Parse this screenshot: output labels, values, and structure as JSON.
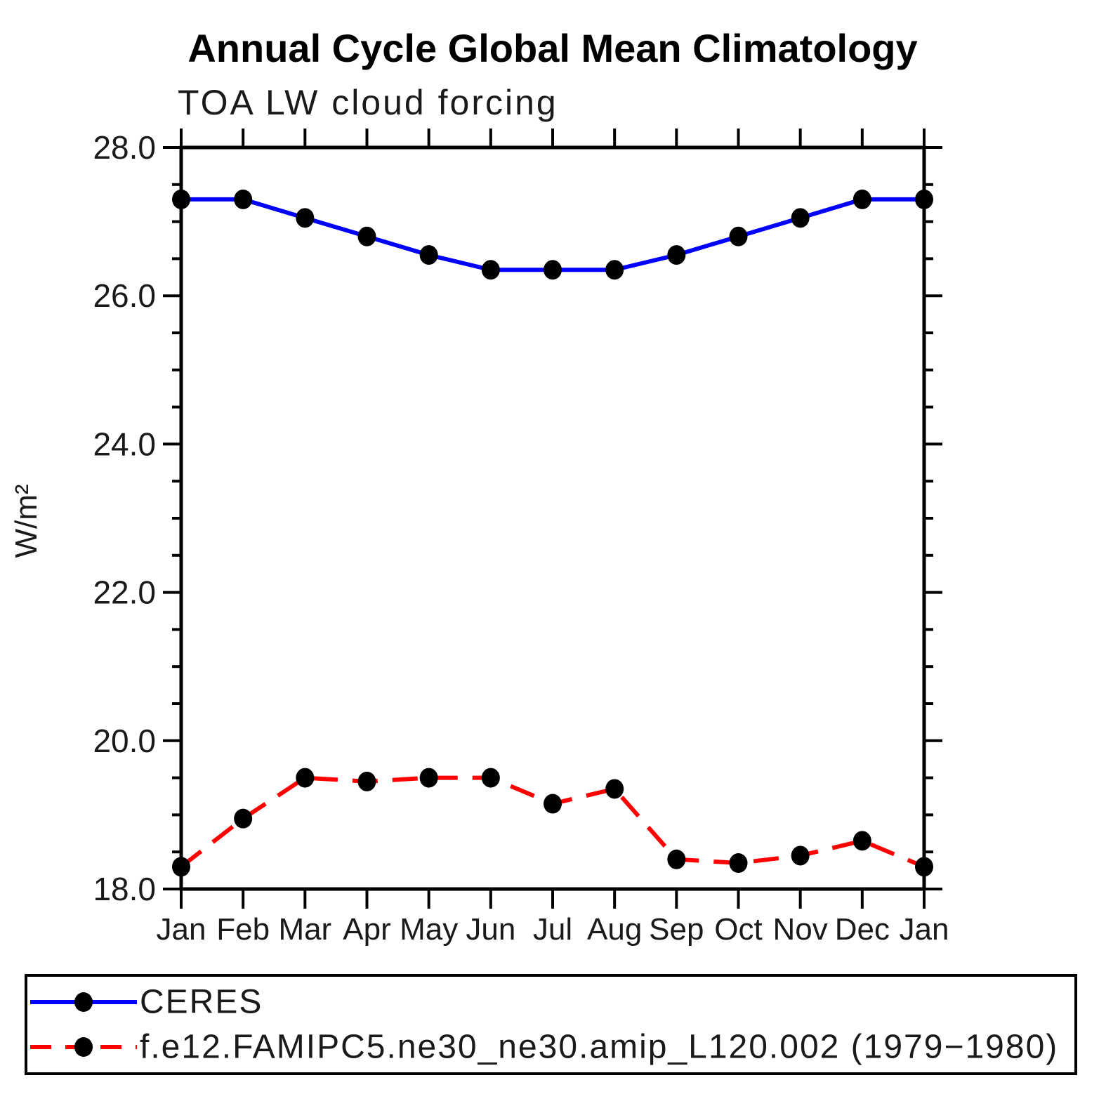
{
  "chart_data": {
    "type": "line",
    "title": "Annual Cycle Global Mean Climatology",
    "subtitle": "TOA LW cloud forcing",
    "ylabel": "W/m²",
    "xlabel": "",
    "ylim": [
      18.0,
      28.0
    ],
    "ytick_major_values": [
      18.0,
      20.0,
      22.0,
      24.0,
      26.0,
      28.0
    ],
    "ytick_major_labels": [
      "18.0",
      "20.0",
      "22.0",
      "24.0",
      "26.0",
      "28.0"
    ],
    "ytick_minor_step": 0.5,
    "grid": false,
    "legend_position": "bottom-outside-box",
    "categories": [
      "Jan",
      "Feb",
      "Mar",
      "Apr",
      "May",
      "Jun",
      "Jul",
      "Aug",
      "Sep",
      "Oct",
      "Nov",
      "Dec",
      "Jan"
    ],
    "series": [
      {
        "name": "CERES",
        "color": "#0000ff",
        "line_style": "solid",
        "marker": "filled-black-circle",
        "values": [
          27.3,
          27.3,
          27.05,
          26.8,
          26.55,
          26.35,
          26.35,
          26.35,
          26.55,
          26.8,
          27.05,
          27.3,
          27.3
        ]
      },
      {
        "name": "f.e12.FAMIPC5.ne30_ne30.amip_L120.002 (1979−1980)",
        "color": "#ff0000",
        "line_style": "dashed",
        "marker": "filled-black-circle",
        "values": [
          18.3,
          18.95,
          19.5,
          19.45,
          19.5,
          19.5,
          19.15,
          19.35,
          18.4,
          18.35,
          18.45,
          18.65,
          18.3
        ]
      }
    ]
  }
}
